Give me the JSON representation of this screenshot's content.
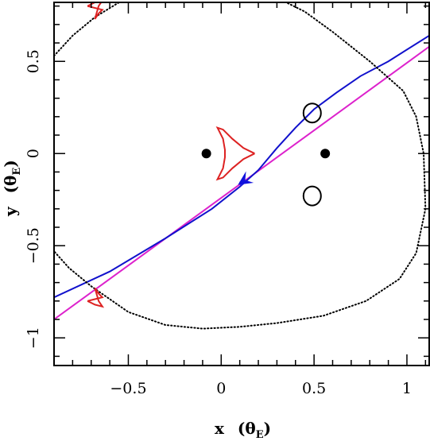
{
  "chart_data": {
    "type": "line",
    "xlabel": "x",
    "xunit": "θ",
    "xunit_sub": "E",
    "ylabel": "y",
    "yunit": "θ",
    "yunit_sub": "E",
    "xlim": [
      -0.9,
      1.12
    ],
    "ylim": [
      -1.15,
      0.82
    ],
    "x_ticks": [
      {
        "value": -0.5,
        "label": "−0.5"
      },
      {
        "value": 0,
        "label": "0"
      },
      {
        "value": 0.5,
        "label": "0.5"
      },
      {
        "value": 1,
        "label": "1"
      }
    ],
    "y_ticks": [
      {
        "value": -1,
        "label": "−1"
      },
      {
        "value": -0.5,
        "label": "−0.5"
      },
      {
        "value": 0,
        "label": "0"
      },
      {
        "value": 0.5,
        "label": "0.5"
      }
    ],
    "grid": false,
    "series": [
      {
        "kind": "straight-trajectory",
        "color": "#dd22cc",
        "points": [
          [
            -0.9,
            -0.9
          ],
          [
            1.12,
            0.58
          ]
        ]
      },
      {
        "kind": "curved-trajectory",
        "color": "#1111cc",
        "points": [
          [
            -0.9,
            -0.78
          ],
          [
            -0.6,
            -0.64
          ],
          [
            -0.3,
            -0.46
          ],
          [
            -0.05,
            -0.3
          ],
          [
            0.1,
            -0.18
          ],
          [
            0.2,
            -0.09
          ],
          [
            0.3,
            0.03
          ],
          [
            0.4,
            0.14
          ],
          [
            0.5,
            0.24
          ],
          [
            0.62,
            0.33
          ],
          [
            0.75,
            0.42
          ],
          [
            0.9,
            0.5
          ],
          [
            1.12,
            0.64
          ]
        ]
      },
      {
        "kind": "critical-curve",
        "color": "#000000",
        "style": "dotted",
        "points": [
          [
            -0.9,
            0.53
          ],
          [
            -0.8,
            0.64
          ],
          [
            -0.68,
            0.74
          ],
          [
            -0.55,
            0.82
          ],
          [
            0.35,
            0.82
          ],
          [
            0.45,
            0.77
          ],
          [
            0.6,
            0.66
          ],
          [
            0.8,
            0.5
          ],
          [
            0.98,
            0.34
          ],
          [
            1.05,
            0.2
          ],
          [
            1.09,
            0.0
          ],
          [
            1.1,
            -0.3
          ],
          [
            1.05,
            -0.54
          ],
          [
            0.96,
            -0.68
          ],
          [
            0.78,
            -0.8
          ],
          [
            0.55,
            -0.88
          ],
          [
            0.3,
            -0.92
          ],
          [
            0.1,
            -0.94
          ],
          [
            -0.1,
            -0.95
          ],
          [
            -0.3,
            -0.93
          ],
          [
            -0.5,
            -0.86
          ],
          [
            -0.7,
            -0.72
          ],
          [
            -0.82,
            -0.62
          ],
          [
            -0.9,
            -0.53
          ]
        ]
      },
      {
        "kind": "caustic",
        "color": "#dd2222",
        "points": [
          [
            0.18,
            0.0
          ],
          [
            0.12,
            0.03
          ],
          [
            0.06,
            0.08
          ],
          [
            0.01,
            0.13
          ],
          [
            -0.02,
            0.14
          ],
          [
            0.01,
            0.08
          ],
          [
            0.02,
            0.02
          ],
          [
            0.02,
            -0.02
          ],
          [
            0.01,
            -0.08
          ],
          [
            -0.02,
            -0.14
          ],
          [
            0.01,
            -0.13
          ],
          [
            0.06,
            -0.08
          ],
          [
            0.12,
            -0.03
          ],
          [
            0.18,
            0.0
          ]
        ]
      },
      {
        "kind": "caustic",
        "color": "#dd2222",
        "points": [
          [
            -0.72,
            0.8
          ],
          [
            -0.68,
            0.79
          ],
          [
            -0.64,
            0.78
          ],
          [
            -0.66,
            0.76
          ],
          [
            -0.68,
            0.73
          ],
          [
            -0.66,
            0.8
          ],
          [
            -0.64,
            0.83
          ],
          [
            -0.68,
            0.82
          ],
          [
            -0.72,
            0.8
          ]
        ]
      },
      {
        "kind": "caustic",
        "color": "#dd2222",
        "points": [
          [
            -0.72,
            -0.8
          ],
          [
            -0.68,
            -0.79
          ],
          [
            -0.64,
            -0.78
          ],
          [
            -0.66,
            -0.76
          ],
          [
            -0.68,
            -0.73
          ],
          [
            -0.66,
            -0.8
          ],
          [
            -0.64,
            -0.83
          ],
          [
            -0.68,
            -0.82
          ],
          [
            -0.72,
            -0.8
          ]
        ]
      }
    ],
    "lenses": [
      {
        "x": -0.08,
        "y": 0.0
      },
      {
        "x": 0.56,
        "y": 0.0
      }
    ],
    "images": [
      {
        "x": 0.49,
        "y": 0.22
      },
      {
        "x": 0.49,
        "y": -0.23
      }
    ],
    "source_point": {
      "x": 0.11,
      "y": -0.16
    },
    "arrow": {
      "x": 0.15,
      "y": -0.13,
      "dx": -0.06,
      "dy": -0.04
    }
  }
}
